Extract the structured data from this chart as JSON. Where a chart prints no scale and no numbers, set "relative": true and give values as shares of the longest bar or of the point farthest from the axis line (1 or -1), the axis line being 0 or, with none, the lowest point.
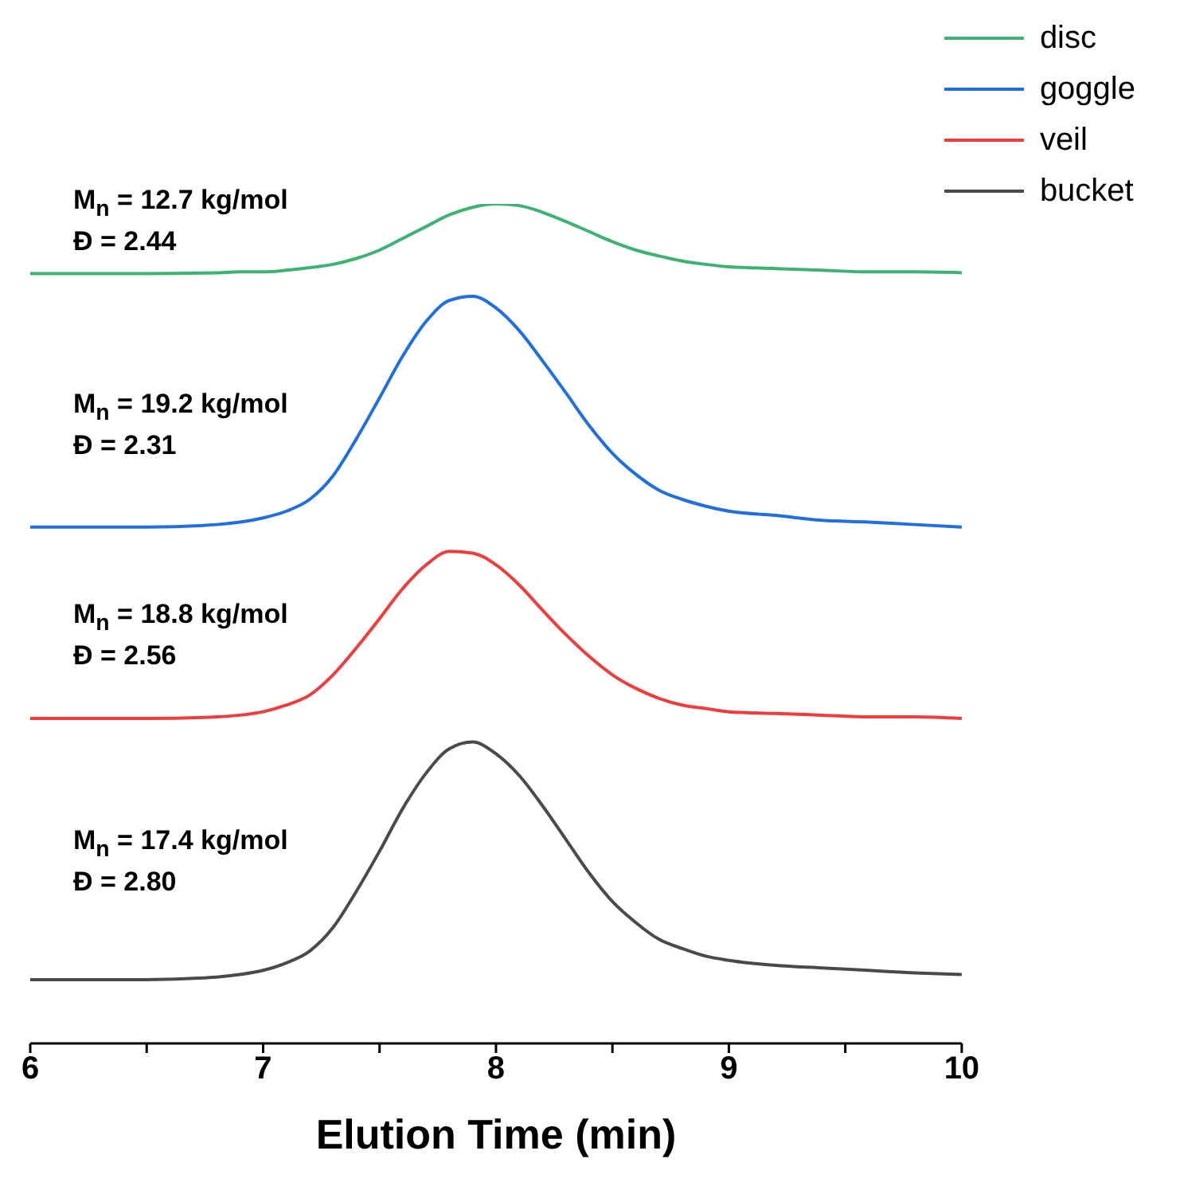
{
  "chart_data": {
    "type": "line",
    "relative": true,
    "xlabel": "Elution Time (min)",
    "xlim": [
      6,
      10
    ],
    "xticks": [
      6,
      {
        "value": 6.5,
        "label": null
      },
      7,
      {
        "value": 7.5,
        "label": null
      },
      8,
      {
        "value": 8.5,
        "label": null
      },
      9,
      {
        "value": 9.5,
        "label": null
      },
      10
    ],
    "legend": "top right",
    "tick_labels": "x",
    "x": [
      6,
      6.5,
      6.8,
      6.9,
      7,
      7.1,
      7.2,
      7.3,
      7.4,
      7.5,
      7.6,
      7.7,
      7.8,
      7.9,
      8,
      8.1,
      8.2,
      8.3,
      8.4,
      8.5,
      8.6,
      8.7,
      8.8,
      8.9,
      9,
      9.2,
      9.4,
      9.6,
      9.8,
      10
    ],
    "series": [
      {
        "name": "disc",
        "color": "#3cb371",
        "values": [
          0.917,
          0.917,
          0.918,
          0.919,
          0.919,
          0.921,
          0.924,
          0.928,
          0.935,
          0.945,
          0.959,
          0.973,
          0.987,
          0.996,
          1.0,
          0.998,
          0.99,
          0.979,
          0.967,
          0.955,
          0.945,
          0.938,
          0.932,
          0.928,
          0.925,
          0.923,
          0.921,
          0.919,
          0.919,
          0.918
        ]
      },
      {
        "name": "goggle",
        "color": "#1f6fe0",
        "values": [
          0.615,
          0.615,
          0.618,
          0.621,
          0.626,
          0.634,
          0.648,
          0.676,
          0.72,
          0.769,
          0.819,
          0.86,
          0.885,
          0.89,
          0.876,
          0.849,
          0.813,
          0.775,
          0.736,
          0.703,
          0.678,
          0.659,
          0.648,
          0.64,
          0.634,
          0.629,
          0.623,
          0.621,
          0.618,
          0.615
        ]
      },
      {
        "name": "veil",
        "color": "#f03c3c",
        "values": [
          0.387,
          0.387,
          0.389,
          0.391,
          0.395,
          0.403,
          0.415,
          0.439,
          0.471,
          0.506,
          0.542,
          0.57,
          0.586,
          0.584,
          0.57,
          0.546,
          0.516,
          0.487,
          0.461,
          0.439,
          0.423,
          0.411,
          0.403,
          0.399,
          0.395,
          0.393,
          0.391,
          0.389,
          0.389,
          0.387
        ]
      },
      {
        "name": "bucket",
        "color": "#4a4a4a",
        "values": [
          0.076,
          0.076,
          0.079,
          0.082,
          0.087,
          0.096,
          0.11,
          0.138,
          0.181,
          0.229,
          0.28,
          0.322,
          0.351,
          0.359,
          0.345,
          0.319,
          0.283,
          0.243,
          0.203,
          0.169,
          0.144,
          0.124,
          0.113,
          0.104,
          0.099,
          0.093,
          0.09,
          0.087,
          0.084,
          0.082
        ]
      }
    ],
    "annotations": [
      "M$_{n}$ = 12.7 kg/mol",
      "Đ = 2.44",
      "M$_{n}$ = 19.2 kg/mol",
      "Đ = 2.31",
      "M$_{n}$ = 18.8 kg/mol",
      "Đ = 2.56",
      "M$_{n}$ = 17.4 kg/mol",
      "Đ = 2.80"
    ]
  }
}
